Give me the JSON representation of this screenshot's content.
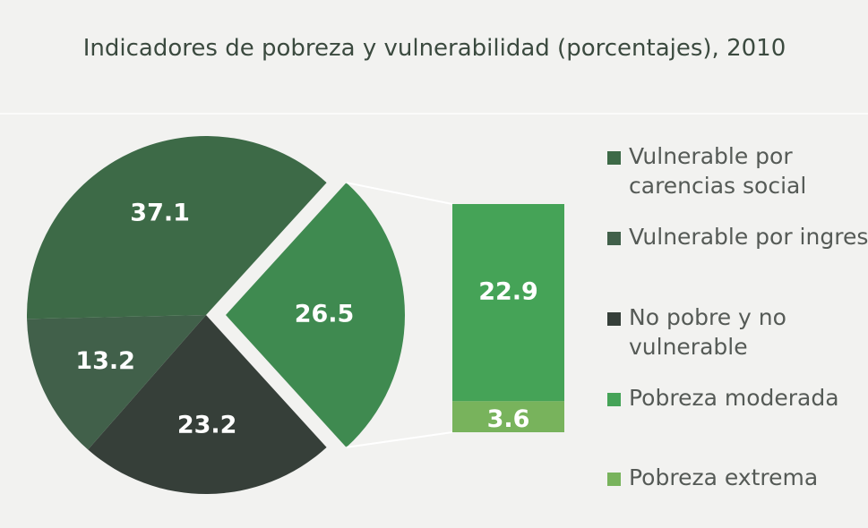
{
  "chart_data": {
    "type": "pie-of-bar",
    "title": "Indicadores de pobreza y vulnerabilidad (porcentajes), 2010",
    "pie": {
      "categories": [
        "Vulnerable por carencias social",
        "Vulnerable por ingreso",
        "No pobre y no vulnerable",
        null
      ],
      "values": [
        37.1,
        13.2,
        23.2,
        26.5
      ],
      "colors": [
        "#3d6a47",
        "#41604a",
        "#363f39",
        "#3f8a50"
      ]
    },
    "bar": {
      "categories": [
        "Pobreza moderada",
        "Pobreza extrema"
      ],
      "values": [
        22.9,
        3.6
      ],
      "colors": [
        "#45a357",
        "#78b35c"
      ]
    }
  }
}
